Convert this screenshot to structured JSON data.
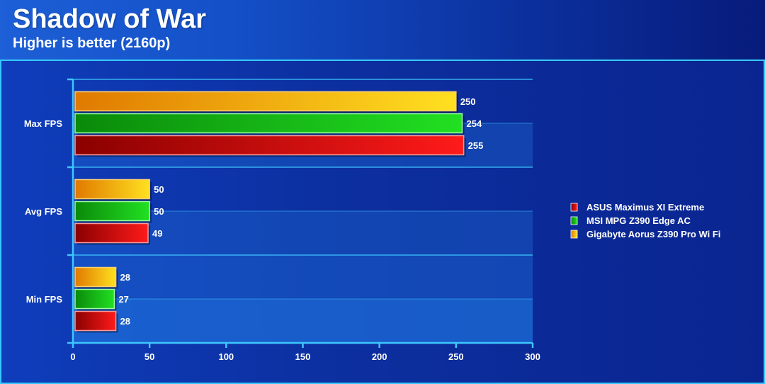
{
  "header": {
    "title": "Shadow of War",
    "subtitle": "Higher is better (2160p)"
  },
  "chart_data": {
    "type": "bar",
    "orientation": "horizontal",
    "title": "Shadow of War",
    "subtitle": "Higher is better (2160p)",
    "categories": [
      "Max FPS",
      "Avg FPS",
      "Min FPS"
    ],
    "series": [
      {
        "name": "ASUS Maximus XI Extreme",
        "values": [
          255,
          49,
          28
        ],
        "color": "#e01010"
      },
      {
        "name": "MSI MPG Z390 Edge AC",
        "values": [
          254,
          50,
          27
        ],
        "color": "#10c010"
      },
      {
        "name": "Gigabyte Aorus Z390 Pro Wi Fi",
        "values": [
          250,
          50,
          28
        ],
        "color": "#f0a010"
      }
    ],
    "bar_order_top_to_bottom": [
      "Gigabyte Aorus Z390 Pro Wi Fi",
      "MSI MPG Z390 Edge AC",
      "ASUS Maximus XI Extreme"
    ],
    "xlim": [
      0,
      300
    ],
    "xticks": [
      0,
      50,
      100,
      150,
      200,
      250,
      300
    ],
    "xlabel": "",
    "ylabel": "",
    "grid": true,
    "legend_position": "right"
  }
}
